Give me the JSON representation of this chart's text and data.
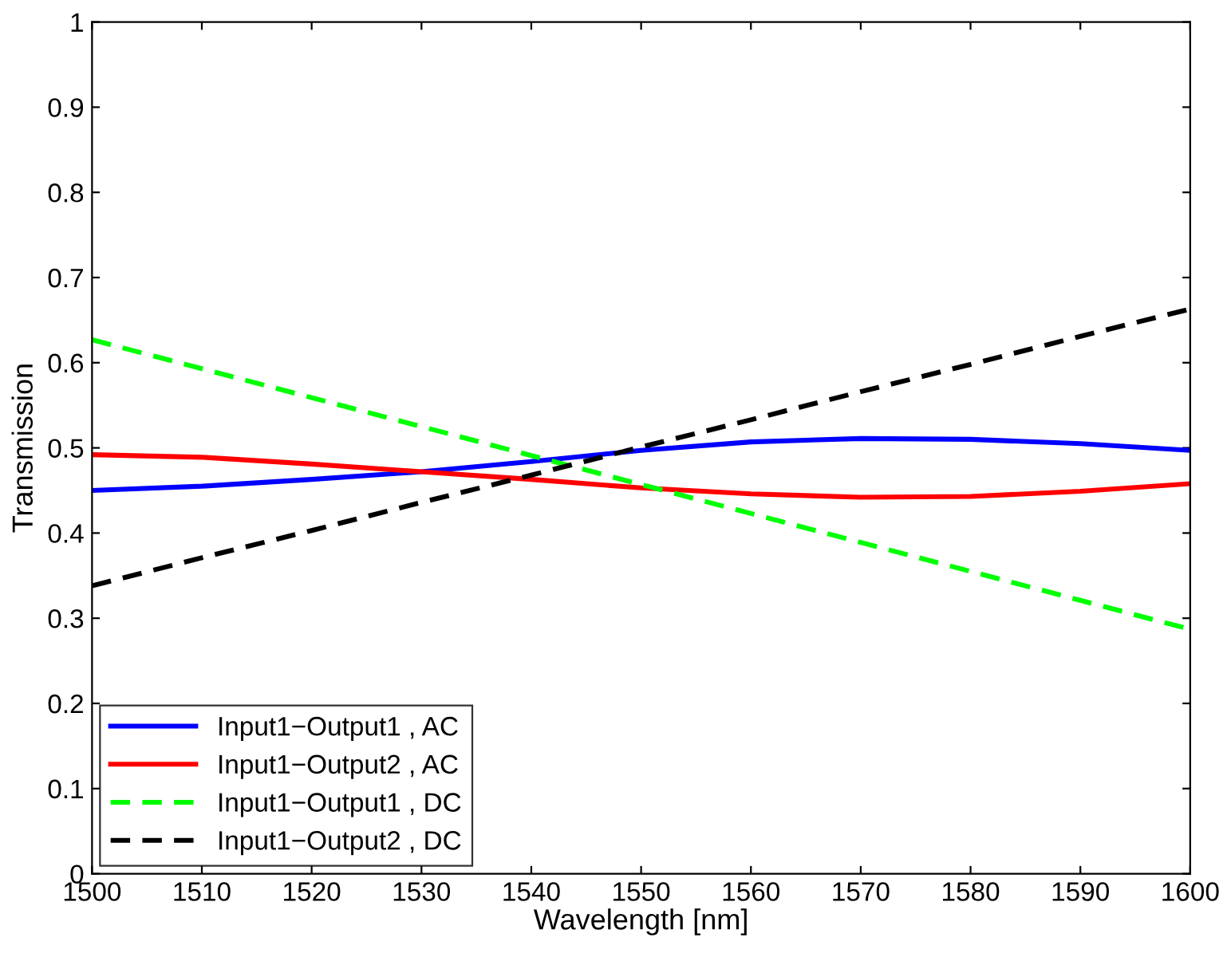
{
  "chart_data": {
    "type": "line",
    "xlabel": "Wavelength [nm]",
    "ylabel": "Transmission",
    "x": [
      1500,
      1510,
      1520,
      1530,
      1540,
      1550,
      1560,
      1570,
      1580,
      1590,
      1600
    ],
    "series": [
      {
        "name": "Input1−Output1 , AC",
        "color": "#0000ff",
        "line_style": "solid",
        "values": [
          0.45,
          0.455,
          0.463,
          0.472,
          0.484,
          0.497,
          0.507,
          0.511,
          0.51,
          0.505,
          0.497
        ]
      },
      {
        "name": "Input1−Output2 , AC",
        "color": "#ff0000",
        "line_style": "solid",
        "values": [
          0.492,
          0.489,
          0.481,
          0.472,
          0.463,
          0.453,
          0.446,
          0.442,
          0.443,
          0.449,
          0.458
        ]
      },
      {
        "name": "Input1−Output1 , DC",
        "color": "#00ff00",
        "line_style": "dashed",
        "values": [
          0.627,
          0.593,
          0.559,
          0.525,
          0.491,
          0.457,
          0.423,
          0.389,
          0.355,
          0.321,
          0.287
        ]
      },
      {
        "name": "Input1−Output2 , DC",
        "color": "#000000",
        "line_style": "dashed",
        "values": [
          0.338,
          0.371,
          0.403,
          0.436,
          0.468,
          0.501,
          0.533,
          0.566,
          0.598,
          0.631,
          0.663
        ]
      }
    ],
    "xlim": [
      1500,
      1600
    ],
    "xticks": [
      1500,
      1510,
      1520,
      1530,
      1540,
      1550,
      1560,
      1570,
      1580,
      1590,
      1600
    ],
    "ylim": [
      0,
      1
    ],
    "yticks": [
      0,
      0.1,
      0.2,
      0.3,
      0.4,
      0.5,
      0.6,
      0.7,
      0.8,
      0.9,
      1
    ],
    "legend": "bottom left",
    "grid": false
  }
}
